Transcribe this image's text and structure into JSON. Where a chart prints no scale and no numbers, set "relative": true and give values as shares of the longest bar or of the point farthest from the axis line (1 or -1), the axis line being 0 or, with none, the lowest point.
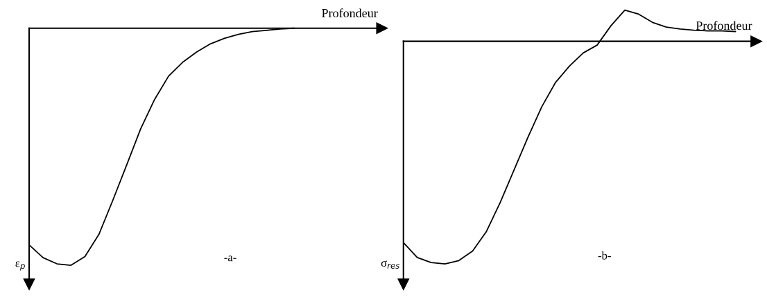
{
  "chart_data": [
    {
      "type": "line",
      "relative": true,
      "xlabel": "Profondeur",
      "ylabel": "ε$_{p}$",
      "annotations": [
        "-a-"
      ],
      "color": "#000000",
      "categories": [
        null,
        null,
        null,
        null,
        null,
        null,
        null,
        null,
        null,
        null,
        null,
        null,
        null,
        null,
        null,
        null,
        null,
        null,
        null,
        null
      ],
      "values": [
        -0.914,
        -0.968,
        -0.994,
        -1,
        -0.963,
        -0.87,
        -0.726,
        -0.576,
        -0.424,
        -0.3,
        -0.202,
        -0.144,
        -0.101,
        -0.066,
        -0.043,
        -0.026,
        -0.014,
        -0.009,
        -0.003,
        0
      ]
    },
    {
      "type": "line",
      "relative": true,
      "xlabel": "Profondeur",
      "ylabel": "σ$_{res}$",
      "annotations": [
        "-b-"
      ],
      "color": "#000000",
      "categories": [
        null,
        null,
        null,
        null,
        null,
        null,
        null,
        null,
        null,
        null,
        null,
        null,
        null,
        null,
        null,
        null,
        null,
        null,
        null,
        null,
        null,
        null,
        null,
        null,
        null
      ],
      "values": [
        -0.904,
        -0.971,
        -0.994,
        -1,
        -0.985,
        -0.942,
        -0.854,
        -0.723,
        -0.577,
        -0.431,
        -0.294,
        -0.184,
        -0.111,
        -0.052,
        -0.017,
        0.07,
        0.14,
        0.122,
        0.085,
        0.064,
        0.055,
        0.05,
        0.047,
        0.047,
        0.044
      ]
    }
  ]
}
